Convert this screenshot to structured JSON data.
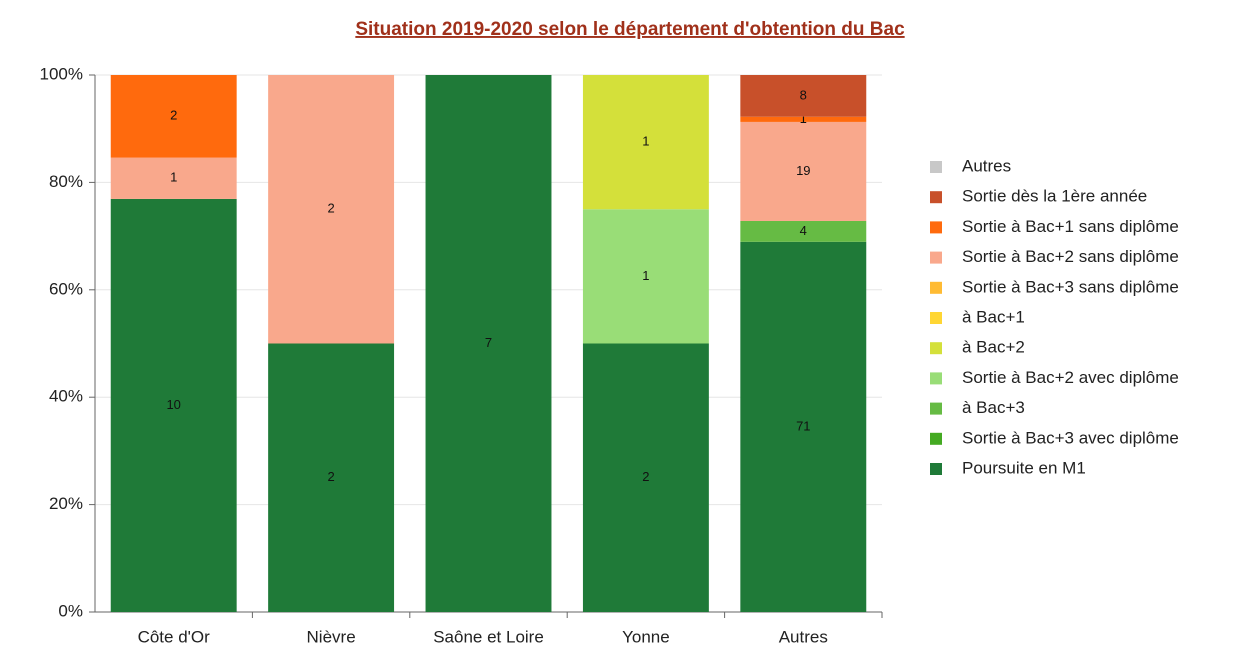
{
  "chart_data": {
    "type": "bar",
    "stacked": "percent",
    "title": "Situation 2019-2020 selon le département d'obtention du Bac",
    "categories": [
      "Côte d'Or",
      "Nièvre",
      "Saône et Loire",
      "Yonne",
      "Autres"
    ],
    "ylim": [
      0,
      100
    ],
    "yticks": [
      {
        "value": 0,
        "label": "0%"
      },
      {
        "value": 20,
        "label": "20%"
      },
      {
        "value": 40,
        "label": "40%"
      },
      {
        "value": 60,
        "label": "60%"
      },
      {
        "value": 80,
        "label": "80%"
      },
      {
        "value": 100,
        "label": "100%"
      }
    ],
    "grid": true,
    "legend": "right",
    "series": [
      {
        "name": "Autres",
        "color": "#c8c8c8",
        "values": [
          null,
          null,
          null,
          null,
          null
        ]
      },
      {
        "name": "Sortie dès la 1ère année",
        "color": "#c8502a",
        "values": [
          null,
          null,
          null,
          null,
          8
        ]
      },
      {
        "name": "Sortie à Bac+1 sans diplôme",
        "color": "#ff6a0d",
        "values": [
          2,
          null,
          null,
          null,
          1
        ]
      },
      {
        "name": "Sortie à Bac+2 sans diplôme",
        "color": "#f9a88c",
        "values": [
          1,
          2,
          null,
          null,
          19
        ]
      },
      {
        "name": "Sortie à Bac+3 sans diplôme",
        "color": "#ffbb33",
        "values": [
          null,
          null,
          null,
          null,
          null
        ]
      },
      {
        "name": "à Bac+1",
        "color": "#ffd633",
        "values": [
          null,
          null,
          null,
          null,
          null
        ]
      },
      {
        "name": "à Bac+2",
        "color": "#d4e03a",
        "values": [
          null,
          null,
          null,
          1,
          null
        ]
      },
      {
        "name": "Sortie à Bac+2 avec diplôme",
        "color": "#99dd77",
        "values": [
          null,
          null,
          null,
          1,
          null
        ]
      },
      {
        "name": "à Bac+3",
        "color": "#66bb44",
        "values": [
          null,
          null,
          null,
          null,
          4
        ]
      },
      {
        "name": "Sortie à Bac+3 avec diplôme",
        "color": "#44aa22",
        "values": [
          null,
          null,
          null,
          null,
          null
        ]
      },
      {
        "name": "Poursuite en M1",
        "color": "#1f7a38",
        "values": [
          10,
          2,
          7,
          2,
          71
        ]
      }
    ]
  }
}
